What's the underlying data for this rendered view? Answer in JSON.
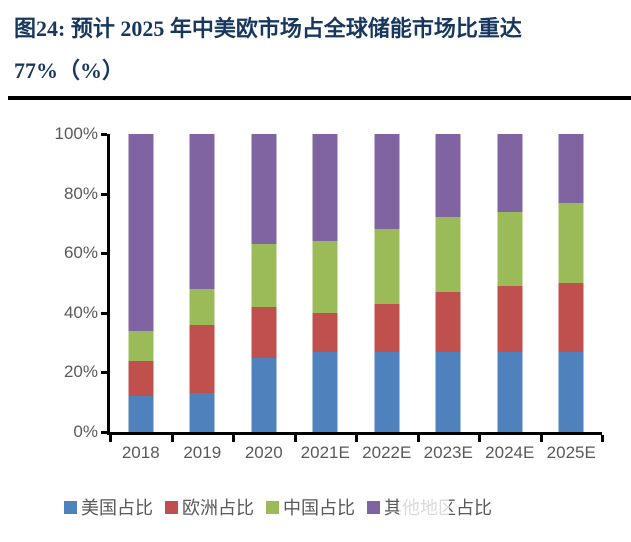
{
  "header": {
    "title_line1": "图24: 预计 2025 年中美欧市场占全球储能市场比重达",
    "title_line2": "77%（%）"
  },
  "chart_data": {
    "type": "bar",
    "stacked": true,
    "title": "预计 2025 年中美欧市场占全球储能市场比重达77%（%）",
    "xlabel": "",
    "ylabel": "",
    "ylim": [
      0,
      100
    ],
    "grid": false,
    "legend_position": "bottom",
    "categories": [
      "2018",
      "2019",
      "2020",
      "2021E",
      "2022E",
      "2023E",
      "2024E",
      "2025E"
    ],
    "yticks": [
      "0%",
      "20%",
      "40%",
      "60%",
      "80%",
      "100%"
    ],
    "series": [
      {
        "name": "美国占比",
        "color": "#4F81BD",
        "values": [
          12,
          13,
          25,
          27,
          27,
          27,
          27,
          27
        ]
      },
      {
        "name": "欧洲占比",
        "color": "#C0504D",
        "values": [
          12,
          23,
          17,
          13,
          16,
          20,
          22,
          23
        ]
      },
      {
        "name": "中国占比",
        "color": "#9BBB59",
        "values": [
          10,
          12,
          21,
          24,
          25,
          25,
          25,
          27
        ]
      },
      {
        "name": "其他地区占比",
        "color": "#8064A2",
        "values": [
          66,
          52,
          37,
          36,
          32,
          28,
          26,
          23
        ]
      }
    ]
  },
  "colors": {
    "title_text": "#17375E",
    "axis_line": "#000000",
    "tick_label": "#595959",
    "rule": "#000000"
  }
}
